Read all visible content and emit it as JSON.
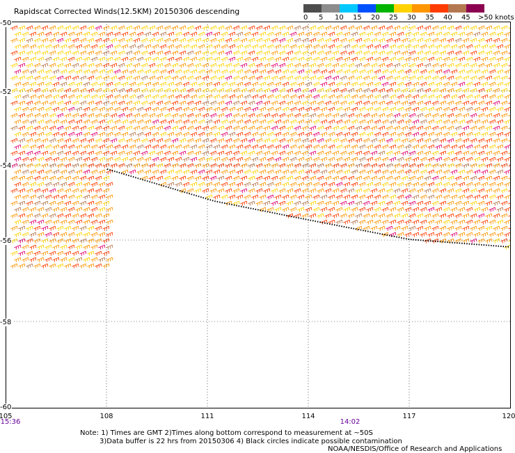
{
  "title": "Rapidscat Corrected Winds(12.5KM) 20150306 descending",
  "scale": {
    "labels": [
      "0",
      "5",
      "10",
      "15",
      "20",
      "25",
      "30",
      "35",
      "40",
      "45",
      ">50 knots"
    ],
    "colors": [
      "#4d4d4d",
      "#8c8c8c",
      "#00c8ff",
      "#0050ff",
      "#00b400",
      "#ffd200",
      "#ff9600",
      "#ff3c00",
      "#b47850",
      "#8c0050",
      "#6600aa"
    ]
  },
  "latitude_ticks": [
    "-50",
    "-52",
    "-54",
    "-56",
    "-58",
    "-60"
  ],
  "longitude_ticks": [
    "105",
    "108",
    "111",
    "114",
    "117",
    "120"
  ],
  "times": [
    "15:36",
    "14:02"
  ],
  "note": {
    "line1": "Note: 1) Times are GMT 2)Times along bottom correspond to measurement at ~50S",
    "line2": "3)Data buffer is 22 hrs from 20150306 4) Black circles indicate possible contamination"
  },
  "credit": "NOAA/NESDIS/Office of Research and Applications",
  "wind_field": {
    "dominant_colors": [
      "#ff9600",
      "#ff3c00",
      "#ffd200",
      "#b47850",
      "#e0006e"
    ],
    "direction": "westerly",
    "land_mask_edge_color": "#000000"
  }
}
